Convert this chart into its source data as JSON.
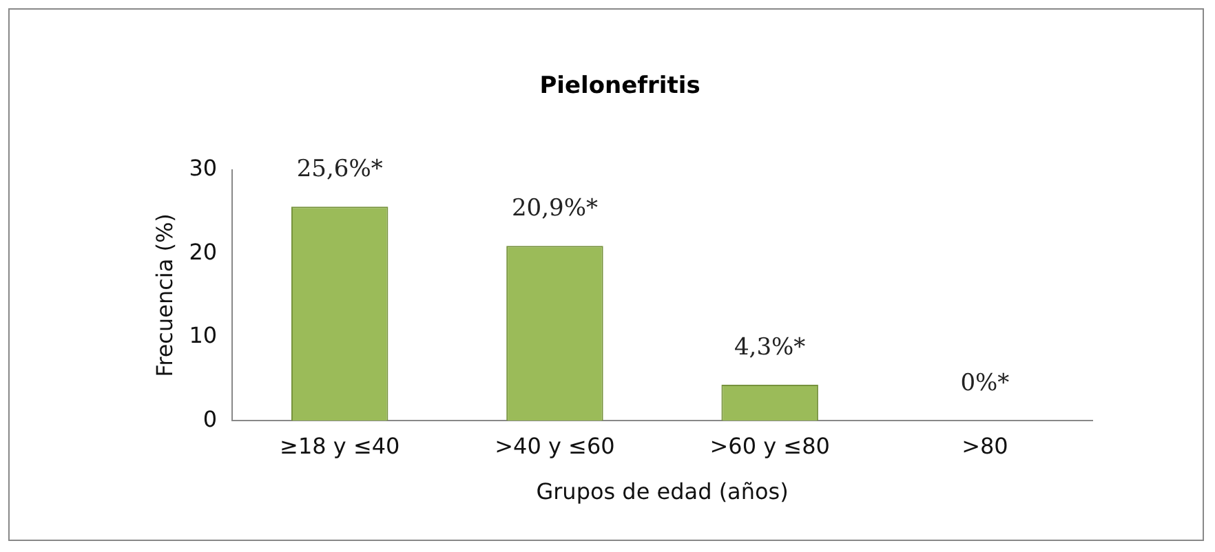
{
  "chart_data": {
    "type": "bar",
    "title": "Pielonefritis",
    "xlabel": "Grupos de edad (años)",
    "ylabel": "Frecuencia (%)",
    "categories": [
      "≥18 y ≤40",
      ">40 y ≤60",
      ">60 y ≤80",
      ">80"
    ],
    "values": [
      25.6,
      20.9,
      4.3,
      0
    ],
    "value_labels": [
      "25,6%*",
      "20,9%*",
      "4,3%*",
      "0%*"
    ],
    "color": "#9bbb59",
    "ylim": [
      0,
      30
    ],
    "yticks": [
      0,
      10,
      20,
      30
    ],
    "grid": false,
    "legend": false
  }
}
